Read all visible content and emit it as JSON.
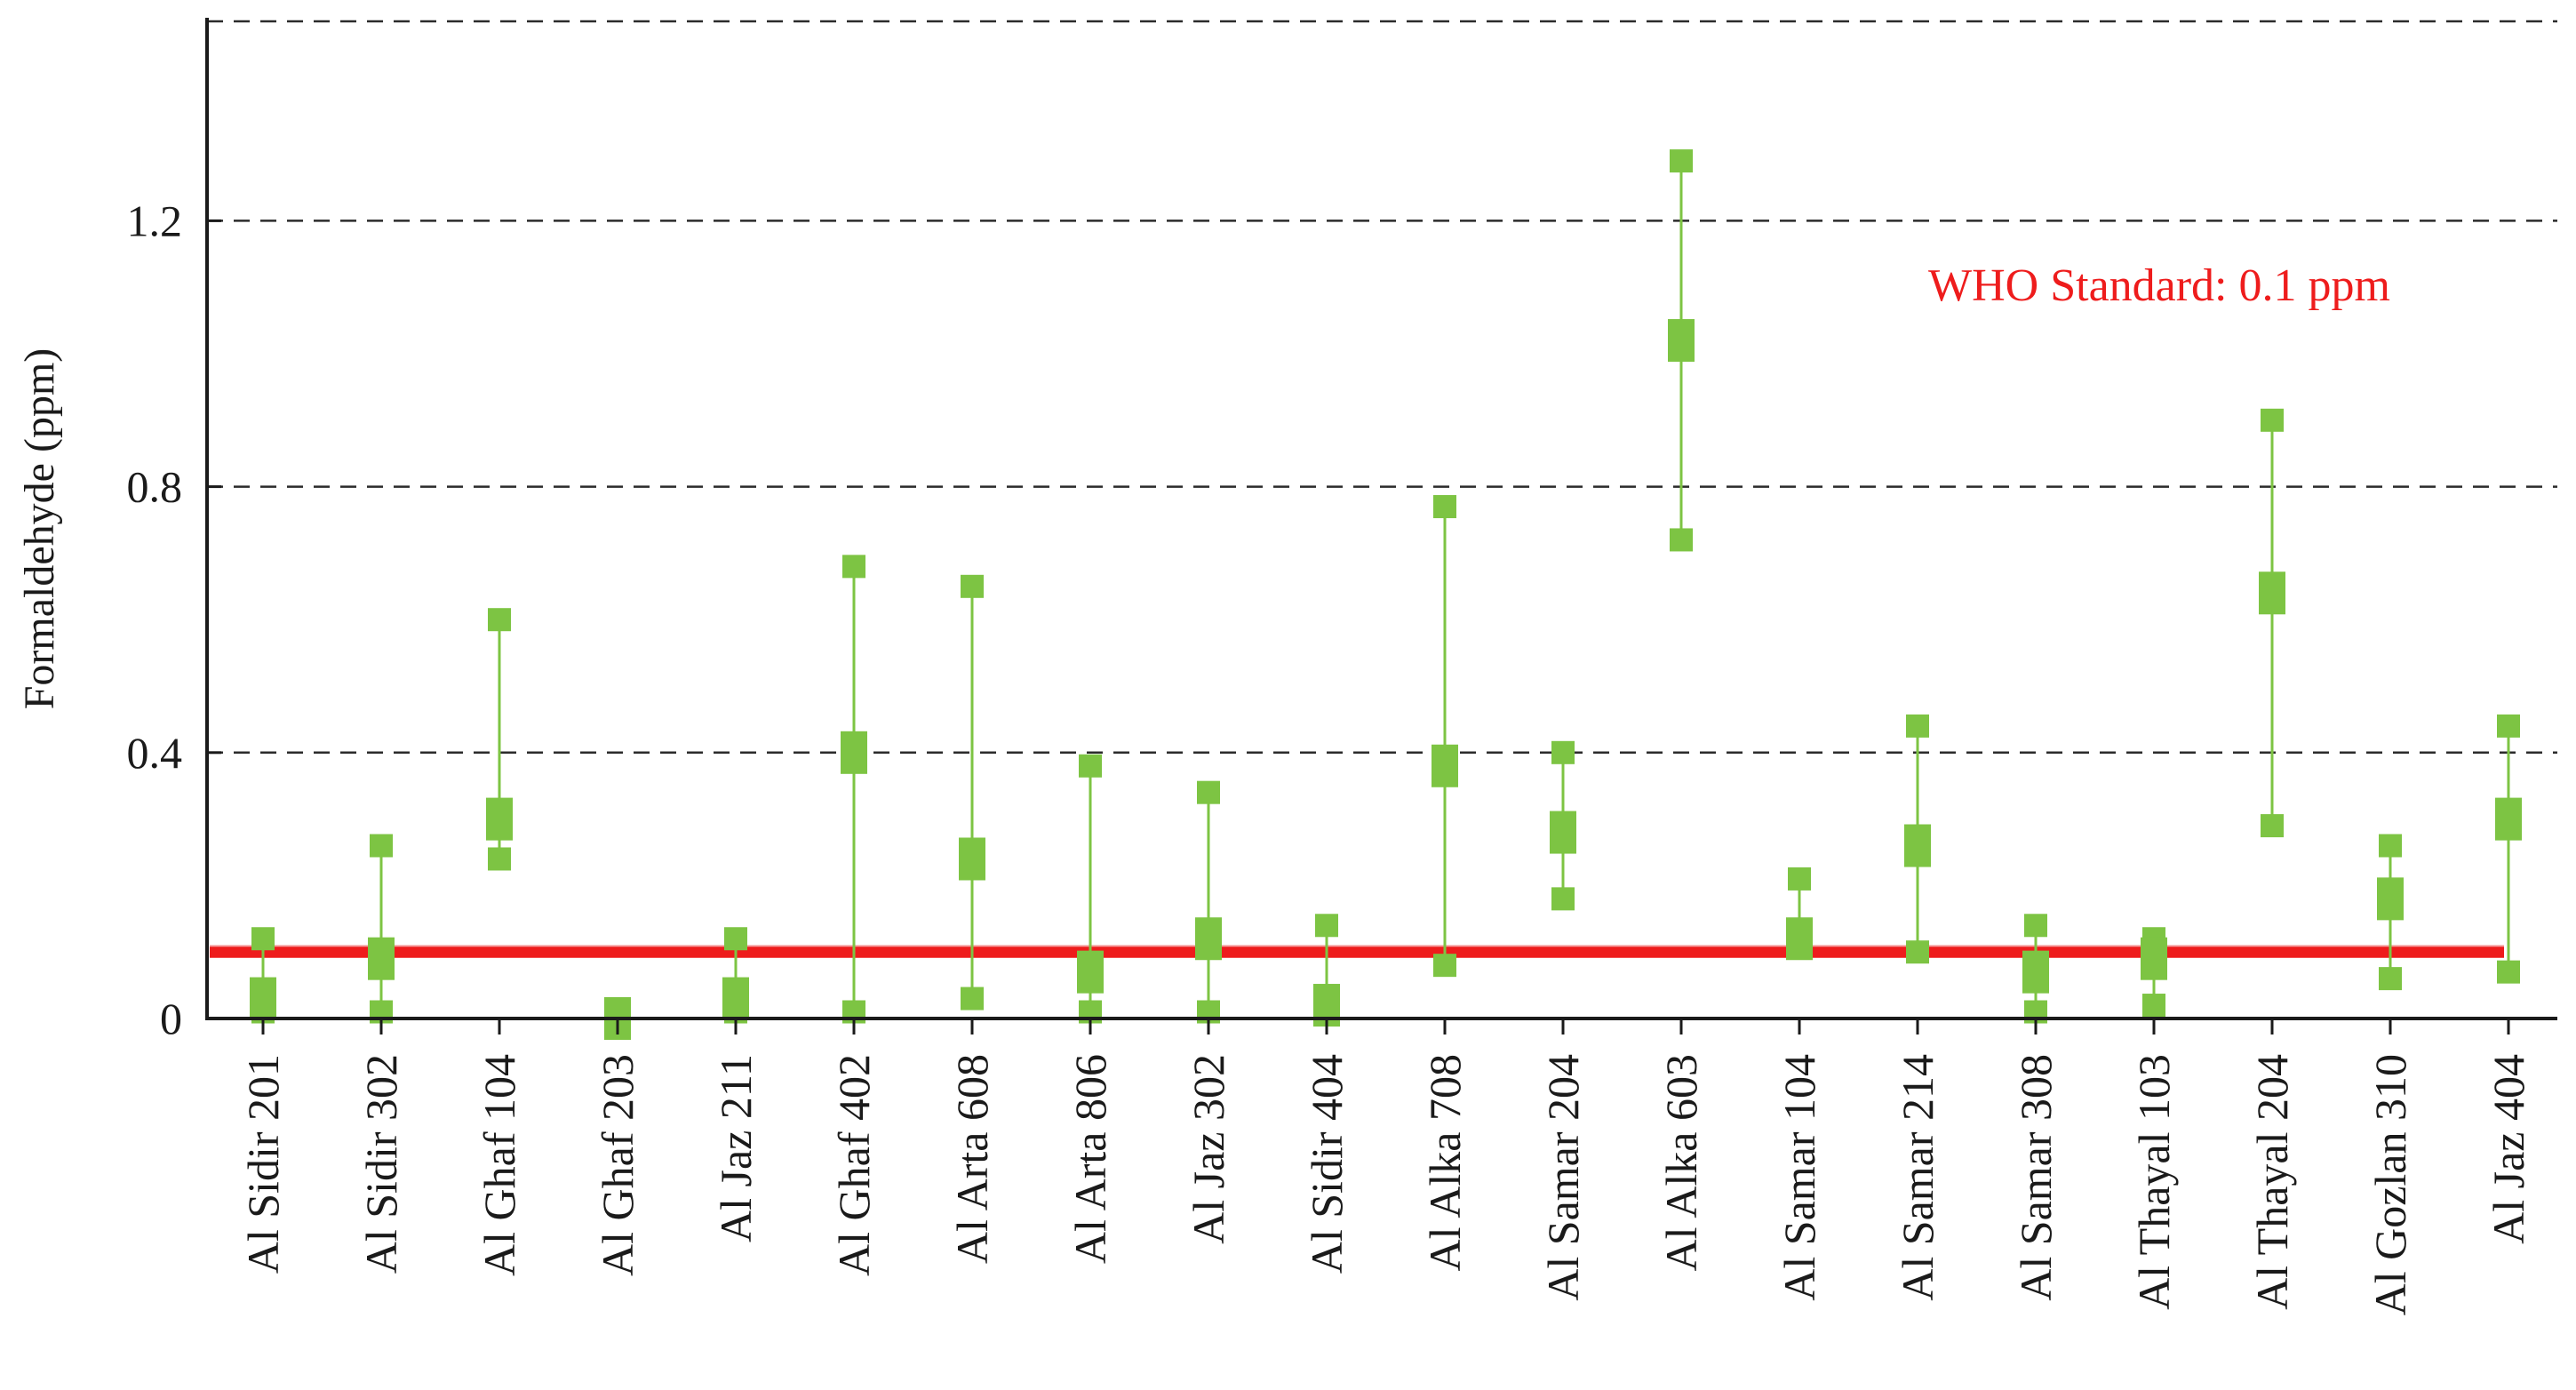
{
  "chart_data": {
    "type": "scatter",
    "title": "",
    "xlabel": "",
    "ylabel": "Formaldehyde (ppm)",
    "ylim": [
      0,
      1.5
    ],
    "yticks": [
      {
        "value": 0,
        "label": "0"
      },
      {
        "value": 0.4,
        "label": "0.4"
      },
      {
        "value": 0.8,
        "label": "0.8"
      },
      {
        "value": 1.2,
        "label": "1.2"
      }
    ],
    "gridlines": [
      0.4,
      0.8,
      1.2,
      1.5
    ],
    "grid": "horizontal dashed",
    "reference_line": {
      "value": 0.1,
      "label": "WHO Standard: 0.1 ppm",
      "color": "#ee1c1c"
    },
    "marker_color": "#7dc443",
    "categories": [
      "Al Sidir 201",
      "Al Sidir 302",
      "Al Ghaf 104",
      "Al Ghaf 203",
      "Al Jaz 211",
      "Al Ghaf 402",
      "Al Arta 608",
      "Al Arta 806",
      "Al Jaz 302",
      "Al Sidir 404",
      "Al Alka 708",
      "Al Samar 204",
      "Al Alka 603",
      "Al Samar 104",
      "Al Samar 214",
      "Al Samar 308",
      "Al Thayal 103",
      "Al Thayal 204",
      "Al Gozlan 310",
      "Al Jaz 404"
    ],
    "series": [
      {
        "min": 0.01,
        "mean": 0.03,
        "max": 0.12
      },
      {
        "min": 0.01,
        "mean": 0.09,
        "max": 0.26
      },
      {
        "min": 0.24,
        "mean": 0.3,
        "max": 0.6
      },
      {
        "min": 0.0,
        "mean": 0.0,
        "max": 0.01
      },
      {
        "min": 0.01,
        "mean": 0.03,
        "max": 0.12
      },
      {
        "min": 0.01,
        "mean": 0.4,
        "max": 0.68
      },
      {
        "min": 0.03,
        "mean": 0.24,
        "max": 0.65
      },
      {
        "min": 0.01,
        "mean": 0.07,
        "max": 0.38
      },
      {
        "min": 0.01,
        "mean": 0.12,
        "max": 0.34
      },
      {
        "min": 0.01,
        "mean": 0.02,
        "max": 0.14
      },
      {
        "min": 0.08,
        "mean": 0.38,
        "max": 0.77
      },
      {
        "min": 0.18,
        "mean": 0.28,
        "max": 0.4
      },
      {
        "min": 0.72,
        "mean": 1.02,
        "max": 1.29
      },
      {
        "min": 0.11,
        "mean": 0.12,
        "max": 0.21
      },
      {
        "min": 0.1,
        "mean": 0.26,
        "max": 0.44
      },
      {
        "min": 0.01,
        "mean": 0.07,
        "max": 0.14
      },
      {
        "min": 0.02,
        "mean": 0.09,
        "max": 0.12
      },
      {
        "min": 0.29,
        "mean": 0.64,
        "max": 0.9
      },
      {
        "min": 0.06,
        "mean": 0.18,
        "max": 0.26
      },
      {
        "min": 0.07,
        "mean": 0.3,
        "max": 0.44
      }
    ]
  }
}
